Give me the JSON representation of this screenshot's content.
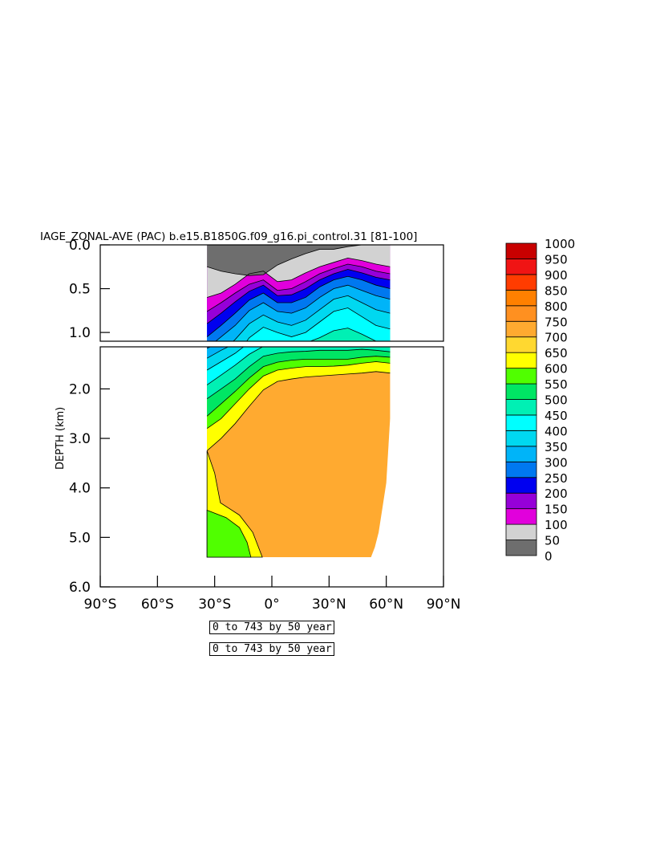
{
  "chart_data": {
    "type": "heatmap",
    "title": "IAGE_ZONAL-AVE (PAC) b.e15.B1850G.f09_g16.pi_control.31 [81-100]",
    "ylabel": "DEPTH (km)",
    "xlabel": "",
    "x_ticks": [
      "90°S",
      "60°S",
      "30°S",
      "0°",
      "30°N",
      "60°N",
      "90°N"
    ],
    "x_range": [
      -90,
      90
    ],
    "upper_panel": {
      "ylim": [
        0.0,
        1.1
      ],
      "y_ticks": [
        "0.0",
        "0.5",
        "1.0"
      ]
    },
    "lower_panel": {
      "ylim": [
        1.15,
        6.0
      ],
      "y_ticks": [
        "2.0",
        "3.0",
        "4.0",
        "5.0",
        "6.0"
      ]
    },
    "data_extent": {
      "lat": [
        -34,
        62
      ],
      "max_depth_km": 5.4
    },
    "colorbar": {
      "levels": [
        0,
        50,
        100,
        150,
        200,
        250,
        300,
        350,
        400,
        450,
        500,
        550,
        600,
        650,
        700,
        750,
        800,
        850,
        900,
        950,
        1000
      ],
      "labels": [
        "0",
        "50",
        "100",
        "150",
        "200",
        "250",
        "300",
        "350",
        "400",
        "450",
        "500",
        "550",
        "600",
        "650",
        "700",
        "750",
        "800",
        "850",
        "900",
        "950",
        "1000"
      ],
      "colors": [
        "#6e6e6e",
        "#d2d2d2",
        "#e100dc",
        "#9600d8",
        "#0000f0",
        "#0078f0",
        "#00b4f8",
        "#00d8f0",
        "#00ffff",
        "#00f0b4",
        "#00e664",
        "#50ff00",
        "#ffff00",
        "#ffd830",
        "#ffaa30",
        "#ff9020",
        "#ff8000",
        "#ff3c00",
        "#f01414",
        "#c80000"
      ]
    },
    "contours_km": [
      {
        "level": 50,
        "depth": [
          0.25,
          0.3,
          0.33,
          0.35,
          0.34,
          0.23,
          0.16,
          0.1,
          0.05,
          0.05,
          0.02,
          0.0,
          0.0,
          0.0
        ]
      },
      {
        "level": 100,
        "depth": [
          0.6,
          0.55,
          0.45,
          0.33,
          0.3,
          0.42,
          0.4,
          0.32,
          0.25,
          0.2,
          0.15,
          0.18,
          0.22,
          0.25
        ]
      },
      {
        "level": 150,
        "depth": [
          0.76,
          0.66,
          0.55,
          0.45,
          0.4,
          0.52,
          0.5,
          0.42,
          0.33,
          0.27,
          0.22,
          0.25,
          0.3,
          0.33
        ]
      },
      {
        "level": 200,
        "depth": [
          0.9,
          0.78,
          0.65,
          0.53,
          0.46,
          0.58,
          0.57,
          0.5,
          0.4,
          0.33,
          0.28,
          0.32,
          0.37,
          0.4
        ]
      },
      {
        "level": 250,
        "depth": [
          1.05,
          0.92,
          0.78,
          0.63,
          0.55,
          0.66,
          0.66,
          0.6,
          0.48,
          0.4,
          0.36,
          0.4,
          0.46,
          0.5
        ]
      },
      {
        "level": 300,
        "depth": [
          1.18,
          1.05,
          0.92,
          0.75,
          0.66,
          0.76,
          0.78,
          0.72,
          0.6,
          0.5,
          0.46,
          0.52,
          0.58,
          0.62
        ]
      },
      {
        "level": 350,
        "depth": [
          1.38,
          1.22,
          1.08,
          0.9,
          0.8,
          0.88,
          0.92,
          0.86,
          0.74,
          0.62,
          0.58,
          0.66,
          0.74,
          0.78
        ]
      },
      {
        "level": 400,
        "depth": [
          1.62,
          1.45,
          1.28,
          1.06,
          0.94,
          1.0,
          1.05,
          1.0,
          0.88,
          0.76,
          0.72,
          0.82,
          0.92,
          0.96
        ]
      },
      {
        "level": 450,
        "depth": [
          1.92,
          1.72,
          1.52,
          1.3,
          1.14,
          1.12,
          1.14,
          1.12,
          1.06,
          0.98,
          0.95,
          1.02,
          1.1,
          1.14
        ]
      },
      {
        "level": 500,
        "depth": [
          2.2,
          2.0,
          1.8,
          1.55,
          1.34,
          1.28,
          1.25,
          1.24,
          1.22,
          1.22,
          1.22,
          1.2,
          1.22,
          1.25
        ]
      },
      {
        "level": 550,
        "depth": [
          2.55,
          2.3,
          2.05,
          1.78,
          1.55,
          1.46,
          1.42,
          1.4,
          1.4,
          1.4,
          1.4,
          1.36,
          1.34,
          1.36
        ]
      },
      {
        "level": 600,
        "depth": [
          2.8,
          2.6,
          2.3,
          2.0,
          1.74,
          1.62,
          1.58,
          1.55,
          1.55,
          1.54,
          1.52,
          1.48,
          1.45,
          1.48
        ]
      },
      {
        "level": 650,
        "depth": [
          3.25,
          3.0,
          2.7,
          2.35,
          2.02,
          1.85,
          1.8,
          1.76,
          1.74,
          1.72,
          1.7,
          1.68,
          1.65,
          1.68
        ]
      }
    ]
  },
  "period_labels": [
    "0 to 743 by 50 year",
    "0 to 743 by 50 year"
  ]
}
